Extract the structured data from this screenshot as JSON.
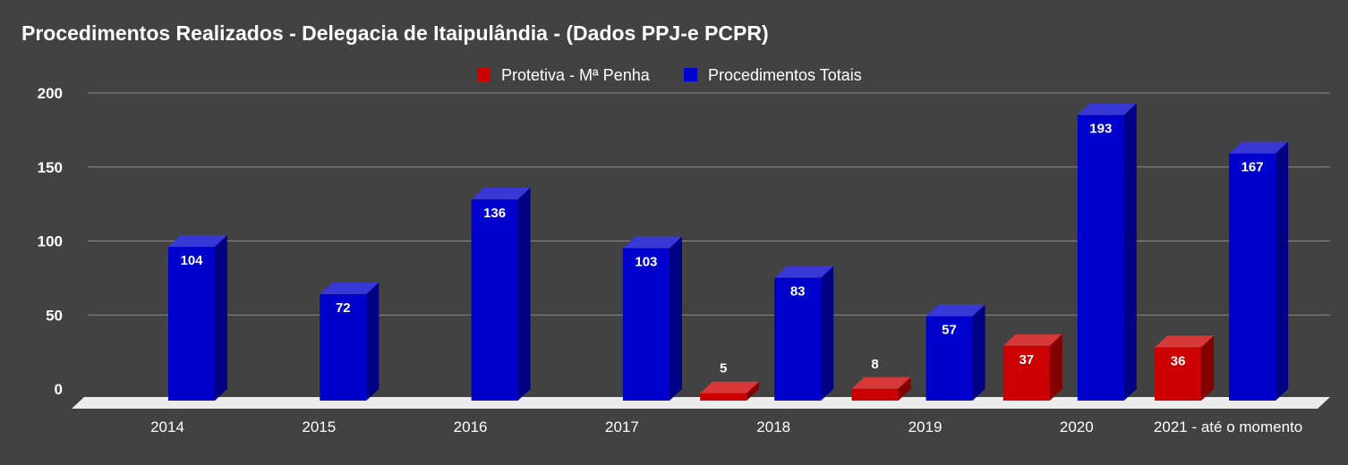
{
  "chart_data": {
    "type": "bar",
    "title": "Procedimentos Realizados - Delegacia de Itaipulândia - (Dados PPJ-e PCPR)",
    "categories": [
      "2014",
      "2015",
      "2016",
      "2017",
      "2018",
      "2019",
      "2020",
      "2021 - até o momento"
    ],
    "series": [
      {
        "name": "Protetiva - Mª Penha",
        "color": "#cc0000",
        "values": [
          null,
          null,
          null,
          null,
          5,
          8,
          37,
          36
        ]
      },
      {
        "name": "Procedimentos Totais",
        "color": "#0000cc",
        "values": [
          104,
          72,
          136,
          103,
          83,
          57,
          193,
          167
        ]
      }
    ],
    "ylim": [
      0,
      200
    ],
    "yticks": [
      0,
      50,
      100,
      150,
      200
    ],
    "xlabel": "",
    "ylabel": "",
    "grid": true,
    "legend_position": "top",
    "style": "3d-column"
  }
}
